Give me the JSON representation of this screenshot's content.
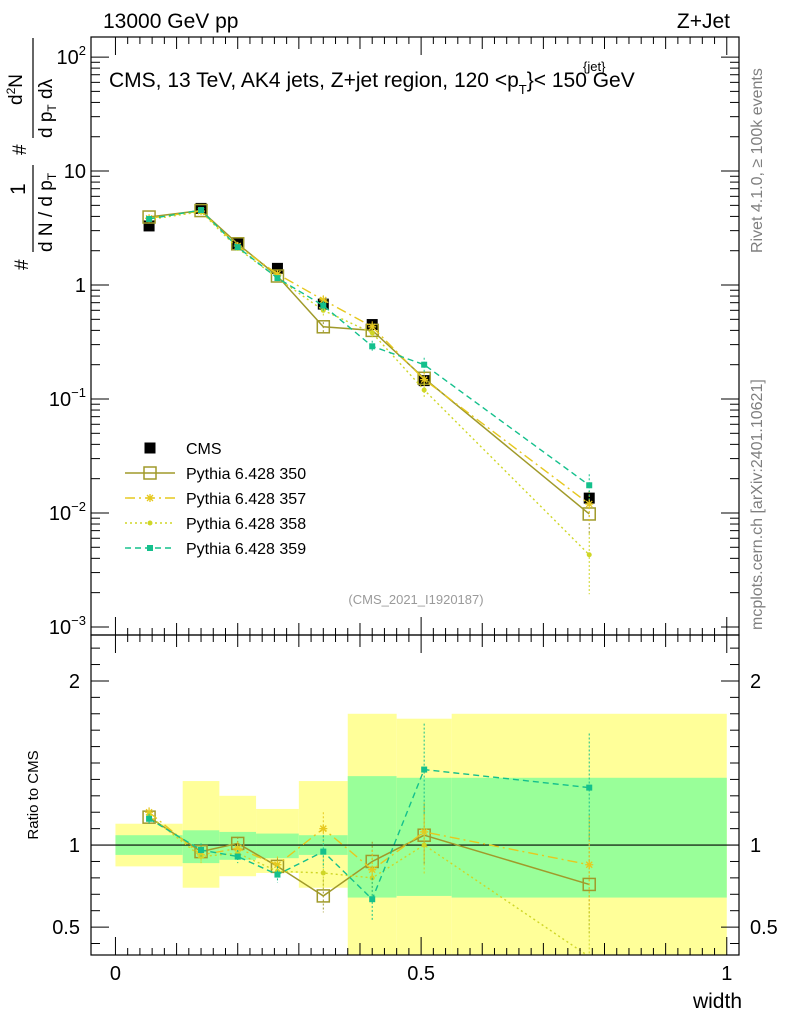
{
  "header": {
    "left_label": "13000 GeV pp",
    "right_label": "Z+Jet"
  },
  "side": {
    "rivet_label": "Rivet 4.1.0, ≥ 100k events",
    "mcplots_label": "mcplots.cern.ch [arXiv:2401.10621]"
  },
  "colors": {
    "cms": "#000000",
    "p350": "#a09a2a",
    "p357": "#e6c81e",
    "p358": "#cfd626",
    "p359": "#14c08c",
    "band_inner": "#99ff99",
    "band_outer": "#ffff99"
  },
  "chart_data": [
    {
      "type": "scatter",
      "title": "CMS, 13 TeV, AK4 jets, Z+jet region, 120 <p_T^{jet}< 150 GeV",
      "title_parts": {
        "main": "CMS, 13 TeV, AK4 jets, Z+jet region, 120 <p",
        "sub": "T",
        "sup": "{jet}",
        "tail": "}< 150 GeV"
      },
      "ylabel": "1/dN/dpT · d²N/dpT dλ",
      "ylabel_parts": {
        "hash": "#",
        "one": "1",
        "den": "d N / d p",
        "den_sub": "T",
        "hash2": "#",
        "numa": "d",
        "numa_sup": "2",
        "numa_rest": "N",
        "denb": "d p",
        "denb_sub": "T",
        "denb_rest": " dλ"
      },
      "yscale": "log",
      "ylim": [
        0.00085,
        150
      ],
      "xlim": [
        -0.04,
        1.02
      ],
      "yticks": [
        {
          "value": 100,
          "base": "10",
          "exp": "2"
        },
        {
          "value": 10,
          "base": "10",
          "exp": ""
        },
        {
          "value": 1,
          "base": "1",
          "exp": ""
        },
        {
          "value": 0.1,
          "base": "10",
          "exp": "−1"
        },
        {
          "value": 0.01,
          "base": "10",
          "exp": "−2"
        },
        {
          "value": 0.001,
          "base": "10",
          "exp": "−3"
        }
      ],
      "watermark": "(CMS_2021_I1920187)",
      "bin_edges": [
        0,
        0.11,
        0.17,
        0.23,
        0.3,
        0.38,
        0.46,
        0.55,
        1.0
      ],
      "x": [
        0.055,
        0.14,
        0.2,
        0.265,
        0.34,
        0.42,
        0.505,
        0.775
      ],
      "legend": [
        "CMS",
        "Pythia 6.428 350",
        "Pythia 6.428 357",
        "Pythia 6.428 358",
        "Pythia 6.428 359"
      ],
      "series": [
        {
          "name": "CMS",
          "key": "cms",
          "values": [
            3.3,
            4.7,
            2.3,
            1.4,
            0.68,
            0.45,
            0.145,
            0.0135
          ],
          "rel_err": [
            0.08,
            0.05,
            0.06,
            0.08,
            0.12,
            0.1,
            0.1,
            0.15
          ]
        },
        {
          "name": "Pythia 6.428 350",
          "key": "p350",
          "values": [
            3.95,
            4.5,
            2.3,
            1.2,
            0.43,
            0.4,
            0.152,
            0.0098
          ],
          "rel_err": [
            0.03,
            0.03,
            0.04,
            0.05,
            0.1,
            0.12,
            0.15,
            0.35
          ]
        },
        {
          "name": "Pythia 6.428 357",
          "key": "p357",
          "values": [
            3.85,
            4.45,
            2.2,
            1.25,
            0.74,
            0.43,
            0.148,
            0.012
          ],
          "rel_err": [
            0.03,
            0.03,
            0.04,
            0.05,
            0.1,
            0.12,
            0.15,
            0.3
          ]
        },
        {
          "name": "Pythia 6.428 358",
          "key": "p358",
          "values": [
            3.75,
            4.4,
            2.1,
            1.15,
            0.6,
            0.38,
            0.12,
            0.0043
          ],
          "rel_err": [
            0.03,
            0.03,
            0.04,
            0.05,
            0.1,
            0.12,
            0.15,
            0.55
          ]
        },
        {
          "name": "Pythia 6.428 359",
          "key": "p359",
          "values": [
            3.8,
            4.55,
            2.15,
            1.15,
            0.66,
            0.29,
            0.2,
            0.0175
          ],
          "rel_err": [
            0.03,
            0.03,
            0.04,
            0.05,
            0.1,
            0.12,
            0.15,
            0.25
          ]
        }
      ]
    },
    {
      "type": "scatter",
      "ylabel": "Ratio to CMS",
      "xlabel": "width",
      "xlim": [
        -0.04,
        1.02
      ],
      "ylim": [
        0.33,
        2.28
      ],
      "yticks_left": [
        0.5,
        1,
        2
      ],
      "yticks_labels": [
        "0.5",
        "1",
        "2"
      ],
      "xticks": [
        0,
        0.5,
        1
      ],
      "xticks_labels": [
        "0",
        "0.5",
        "1"
      ],
      "bin_edges": [
        0,
        0.11,
        0.17,
        0.23,
        0.3,
        0.38,
        0.46,
        0.55,
        1.0
      ],
      "x": [
        0.055,
        0.14,
        0.2,
        0.265,
        0.34,
        0.42,
        0.505,
        0.775
      ],
      "band_inner": [
        [
          0.94,
          1.06
        ],
        [
          0.89,
          1.09
        ],
        [
          0.91,
          1.08
        ],
        [
          0.92,
          1.07
        ],
        [
          0.94,
          1.06
        ],
        [
          0.68,
          1.42
        ],
        [
          0.69,
          1.41
        ],
        [
          0.68,
          1.41
        ]
      ],
      "band_outer": [
        [
          0.87,
          1.13
        ],
        [
          0.74,
          1.39
        ],
        [
          0.81,
          1.3
        ],
        [
          0.83,
          1.22
        ],
        [
          0.74,
          1.39
        ],
        [
          0.3,
          1.8
        ],
        [
          0.3,
          1.77
        ],
        [
          0.3,
          1.8
        ]
      ],
      "series": [
        {
          "name": "Pythia 6.428 350",
          "key": "p350",
          "values": [
            1.17,
            0.96,
            1.01,
            0.87,
            0.69,
            0.9,
            1.06,
            0.76
          ],
          "err": [
            0.03,
            0.04,
            0.04,
            0.05,
            0.1,
            0.12,
            0.18,
            0.3
          ]
        },
        {
          "name": "Pythia 6.428 357",
          "key": "p357",
          "values": [
            1.2,
            0.94,
            0.98,
            0.88,
            1.1,
            0.85,
            1.08,
            0.88
          ],
          "err": [
            0.03,
            0.04,
            0.04,
            0.05,
            0.1,
            0.12,
            0.18,
            0.3
          ]
        },
        {
          "name": "Pythia 6.428 358",
          "key": "p358",
          "values": [
            1.18,
            0.93,
            0.95,
            0.84,
            0.83,
            0.8,
            1.0,
            0.32
          ],
          "err": [
            0.03,
            0.04,
            0.04,
            0.05,
            0.1,
            0.12,
            0.18,
            0.3
          ]
        },
        {
          "name": "Pythia 6.428 359",
          "key": "p359",
          "values": [
            1.16,
            0.97,
            0.93,
            0.82,
            0.96,
            0.67,
            1.46,
            1.35
          ],
          "err": [
            0.03,
            0.04,
            0.04,
            0.05,
            0.1,
            0.13,
            0.28,
            0.33
          ]
        }
      ]
    }
  ]
}
